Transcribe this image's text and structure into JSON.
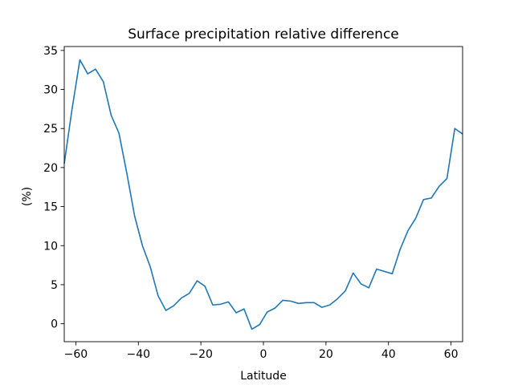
{
  "chart_data": {
    "type": "line",
    "title": "Surface precipitation relative difference",
    "xlabel": "Latitude",
    "ylabel": "(%)",
    "xlim": [
      -63.7,
      63.7
    ],
    "ylim": [
      -2.3,
      35.5
    ],
    "xticks": [
      -60,
      -40,
      -20,
      0,
      20,
      40,
      60
    ],
    "yticks": [
      0,
      5,
      10,
      15,
      20,
      25,
      30,
      35
    ],
    "grid": false,
    "series": [
      {
        "color": "#1f77b4",
        "x": [
          -63.7,
          -61.2,
          -58.7,
          -56.2,
          -53.7,
          -51.2,
          -48.7,
          -46.2,
          -43.7,
          -41.2,
          -38.7,
          -36.2,
          -33.7,
          -31.2,
          -28.7,
          -26.2,
          -23.7,
          -21.2,
          -18.7,
          -16.2,
          -13.7,
          -11.2,
          -8.7,
          -6.2,
          -3.7,
          -1.2,
          1.2,
          3.7,
          6.2,
          8.7,
          11.2,
          13.7,
          16.2,
          18.7,
          21.2,
          23.7,
          26.2,
          28.7,
          31.2,
          33.7,
          36.2,
          38.7,
          41.2,
          43.7,
          46.2,
          48.7,
          51.2,
          53.7,
          56.2,
          58.7,
          61.2,
          63.7
        ],
        "y": [
          20.5,
          27.5,
          33.8,
          32.0,
          32.6,
          31.0,
          26.7,
          24.4,
          19.3,
          13.8,
          10.0,
          7.3,
          3.6,
          1.7,
          2.3,
          3.3,
          3.9,
          5.5,
          4.8,
          2.4,
          2.5,
          2.8,
          1.4,
          1.9,
          -0.7,
          -0.1,
          1.5,
          2.0,
          3.0,
          2.9,
          2.6,
          2.7,
          2.7,
          2.1,
          2.4,
          3.2,
          4.2,
          6.5,
          5.1,
          4.6,
          7.0,
          6.7,
          6.4,
          9.5,
          11.9,
          13.5,
          15.9,
          16.1,
          17.6,
          18.6,
          25.0,
          24.3
        ]
      }
    ]
  }
}
